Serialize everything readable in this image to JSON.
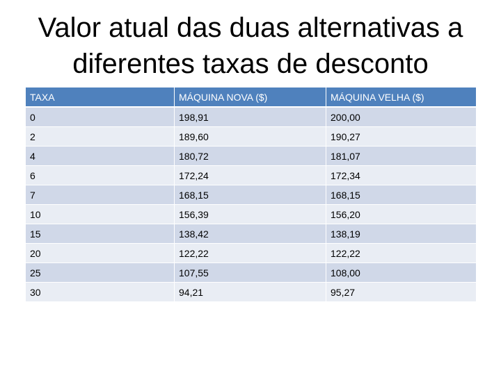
{
  "title": "Valor atual das duas alternativas a diferentes taxas de desconto",
  "table": {
    "header": [
      "TAXA",
      "MÁQUINA NOVA ($)",
      "MÁQUINA VELHA ($)"
    ],
    "rows": [
      [
        "0",
        "198,91",
        "200,00"
      ],
      [
        "2",
        "189,60",
        "190,27"
      ],
      [
        "4",
        "180,72",
        "181,07"
      ],
      [
        "6",
        "172,24",
        "172,34"
      ],
      [
        "7",
        "168,15",
        "168,15"
      ],
      [
        "10",
        "156,39",
        "156,20"
      ],
      [
        "15",
        "138,42",
        "138,19"
      ],
      [
        "20",
        "122,22",
        "122,22"
      ],
      [
        "25",
        "107,55",
        "108,00"
      ],
      [
        "30",
        "94,21",
        "95,27"
      ]
    ]
  }
}
